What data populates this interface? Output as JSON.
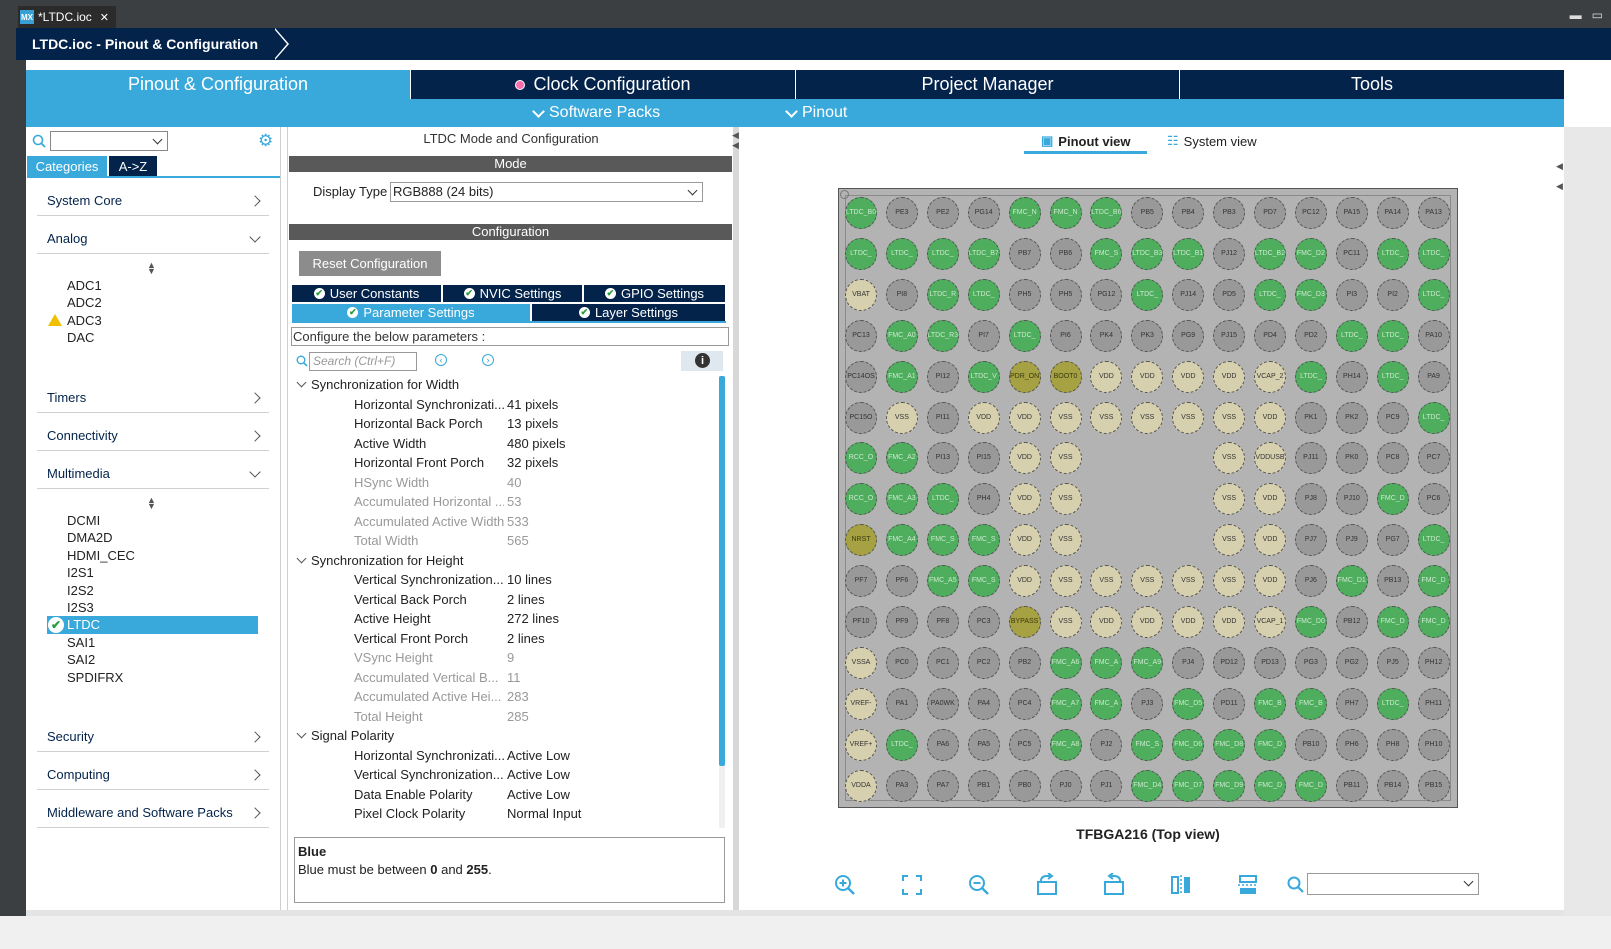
{
  "window": {
    "file_tab": "*LTDC.ioc",
    "close_glyph": "✕",
    "app_icon_text": "MX",
    "minimize_glyph": "▬",
    "maximize_glyph": "▭"
  },
  "breadcrumb": "LTDC.ioc - Pinout & Configuration",
  "main_tabs": [
    {
      "label": "Pinout & Configuration"
    },
    {
      "label": "Clock Configuration"
    },
    {
      "label": "Project Manager"
    },
    {
      "label": "Tools"
    }
  ],
  "sub_menu": {
    "software_packs": "Software Packs",
    "pinout": "Pinout"
  },
  "left": {
    "tab_categories": "Categories",
    "tab_az": "A->Z",
    "categories": [
      "System Core",
      "Analog",
      "Timers",
      "Connectivity",
      "Multimedia",
      "Security",
      "Computing",
      "Middleware and Software Packs"
    ],
    "analog_items": [
      "ADC1",
      "ADC2",
      "ADC3",
      "DAC"
    ],
    "multimedia_items": [
      "DCMI",
      "DMA2D",
      "HDMI_CEC",
      "I2S1",
      "I2S2",
      "I2S3",
      "LTDC",
      "SAI1",
      "SAI2",
      "SPDIFRX"
    ]
  },
  "middle": {
    "title": "LTDC Mode and Configuration",
    "mode_header": "Mode",
    "display_type_label": "Display Type",
    "display_type_value": "RGB888 (24 bits)",
    "config_header": "Configuration",
    "reset_button": "Reset Configuration",
    "tabs_row1": [
      "User Constants",
      "NVIC Settings",
      "GPIO Settings"
    ],
    "tabs_row2": [
      "Parameter Settings",
      "Layer Settings"
    ],
    "configure_text": "Configure the below parameters :",
    "search_placeholder": "Search (Ctrl+F)",
    "info_glyph": "i",
    "groups": [
      {
        "title": "Synchronization for Width",
        "params": [
          {
            "name": "Horizontal Synchronizati...",
            "value": "41 pixels",
            "enabled": true
          },
          {
            "name": "Horizontal Back Porch",
            "value": "13 pixels",
            "enabled": true
          },
          {
            "name": "Active Width",
            "value": "480 pixels",
            "enabled": true
          },
          {
            "name": "Horizontal Front Porch",
            "value": "32 pixels",
            "enabled": true
          },
          {
            "name": "HSync Width",
            "value": "40",
            "enabled": false
          },
          {
            "name": "Accumulated Horizontal ...",
            "value": "53",
            "enabled": false
          },
          {
            "name": "Accumulated Active Width",
            "value": "533",
            "enabled": false
          },
          {
            "name": "Total Width",
            "value": "565",
            "enabled": false
          }
        ]
      },
      {
        "title": "Synchronization for Height",
        "params": [
          {
            "name": "Vertical Synchronization...",
            "value": "10 lines",
            "enabled": true
          },
          {
            "name": "Vertical Back Porch",
            "value": "2 lines",
            "enabled": true
          },
          {
            "name": "Active Height",
            "value": "272 lines",
            "enabled": true
          },
          {
            "name": "Vertical Front Porch",
            "value": "2 lines",
            "enabled": true
          },
          {
            "name": "VSync Height",
            "value": "9",
            "enabled": false
          },
          {
            "name": "Accumulated Vertical B...",
            "value": "11",
            "enabled": false
          },
          {
            "name": "Accumulated Active Hei...",
            "value": "283",
            "enabled": false
          },
          {
            "name": "Total Height",
            "value": "285",
            "enabled": false
          }
        ]
      },
      {
        "title": "Signal Polarity",
        "params": [
          {
            "name": "Horizontal Synchronizati...",
            "value": "Active Low",
            "enabled": true
          },
          {
            "name": "Vertical Synchronization...",
            "value": "Active Low",
            "enabled": true
          },
          {
            "name": "Data Enable Polarity",
            "value": "Active Low",
            "enabled": true
          },
          {
            "name": "Pixel Clock Polarity",
            "value": "Normal Input",
            "enabled": true
          }
        ]
      }
    ],
    "description": {
      "title": "Blue",
      "text_pre": "Blue must be between ",
      "min": "0",
      "text_mid": " and ",
      "max": "255",
      "text_post": "."
    }
  },
  "right": {
    "pinout_view": "Pinout view",
    "system_view": "System view",
    "chip_label": "TFBGA216 (Top view)",
    "status_colors": {
      "assigned": "#4eae5e",
      "unassigned": "#999999",
      "power": "#d6d0ae",
      "special": "#a6a142",
      "accent": "#39a9dc",
      "nav": "#03234b"
    },
    "pin_rows": [
      [
        [
          "LTDC_B0",
          "a"
        ],
        [
          "PE3",
          "g"
        ],
        [
          "PE2",
          "g"
        ],
        [
          "PG14",
          "g"
        ],
        [
          "FMC_N",
          "a"
        ],
        [
          "FMC_N",
          "a"
        ],
        [
          "LTDC_B6",
          "a"
        ],
        [
          "PB5",
          "g"
        ],
        [
          "PB4",
          "g"
        ],
        [
          "PB3",
          "g"
        ],
        [
          "PD7",
          "g"
        ],
        [
          "PC12",
          "g"
        ],
        [
          "PA15",
          "g"
        ],
        [
          "PA14",
          "g"
        ],
        [
          "PA13",
          "g"
        ]
      ],
      [
        [
          "LTDC_",
          "a"
        ],
        [
          "LTDC_",
          "a"
        ],
        [
          "LTDC_",
          "a"
        ],
        [
          "LTDC_B7",
          "a"
        ],
        [
          "PB7",
          "g"
        ],
        [
          "PB6",
          "g"
        ],
        [
          "FMC_S",
          "a"
        ],
        [
          "LTDC_B3",
          "a"
        ],
        [
          "LTDC_B1",
          "a"
        ],
        [
          "PJ12",
          "g"
        ],
        [
          "LTDC_B2",
          "a"
        ],
        [
          "FMC_D2",
          "a"
        ],
        [
          "PC11",
          "g"
        ],
        [
          "LTDC_",
          "a"
        ],
        [
          "LTDC_",
          "a"
        ]
      ],
      [
        [
          "VBAT",
          "p"
        ],
        [
          "PI8",
          "g"
        ],
        [
          "LTDC_R",
          "a"
        ],
        [
          "LTDC_",
          "a"
        ],
        [
          "PH5",
          "g"
        ],
        [
          "PH5",
          "g"
        ],
        [
          "PG12",
          "g"
        ],
        [
          "LTDC_",
          "a"
        ],
        [
          "PJ14",
          "g"
        ],
        [
          "PD5",
          "g"
        ],
        [
          "LTDC_",
          "a"
        ],
        [
          "FMC_D3",
          "a"
        ],
        [
          "PI3",
          "g"
        ],
        [
          "PI2",
          "g"
        ],
        [
          "LTDC_",
          "a"
        ]
      ],
      [
        [
          "PC13",
          "g"
        ],
        [
          "FMC_A0",
          "a"
        ],
        [
          "LTDC_R3",
          "a"
        ],
        [
          "PI7",
          "g"
        ],
        [
          "LTDC_",
          "a"
        ],
        [
          "PI6",
          "g"
        ],
        [
          "PK4",
          "g"
        ],
        [
          "PK3",
          "g"
        ],
        [
          "PG9",
          "g"
        ],
        [
          "PJ15",
          "g"
        ],
        [
          "PD4",
          "g"
        ],
        [
          "PD2",
          "g"
        ],
        [
          "LTDC_",
          "a"
        ],
        [
          "LTDC_",
          "a"
        ],
        [
          "PA10",
          "g"
        ]
      ],
      [
        [
          "PC14OS",
          "g"
        ],
        [
          "FMC_A1",
          "a"
        ],
        [
          "PI12",
          "g"
        ],
        [
          "LTDC_V",
          "a"
        ],
        [
          "PDR_ON",
          "y"
        ],
        [
          "BOOT0",
          "y"
        ],
        [
          "VDD",
          "p"
        ],
        [
          "VDD",
          "p"
        ],
        [
          "VDD",
          "p"
        ],
        [
          "VDD",
          "p"
        ],
        [
          "VCAP_2",
          "p"
        ],
        [
          "LTDC_",
          "a"
        ],
        [
          "PH14",
          "g"
        ],
        [
          "LTDC_",
          "a"
        ],
        [
          "PA9",
          "g"
        ]
      ],
      [
        [
          "PC15O",
          "g"
        ],
        [
          "VSS",
          "p"
        ],
        [
          "PI11",
          "g"
        ],
        [
          "VDD",
          "p"
        ],
        [
          "VDD",
          "p"
        ],
        [
          "VSS",
          "p"
        ],
        [
          "VSS",
          "p"
        ],
        [
          "VSS",
          "p"
        ],
        [
          "VSS",
          "p"
        ],
        [
          "VSS",
          "p"
        ],
        [
          "VDD",
          "p"
        ],
        [
          "PK1",
          "g"
        ],
        [
          "PK2",
          "g"
        ],
        [
          "PC9",
          "g"
        ],
        [
          "LTDC_",
          "a"
        ]
      ],
      [
        [
          "RCC_O",
          "a"
        ],
        [
          "FMC_A2",
          "a"
        ],
        [
          "PI13",
          "g"
        ],
        [
          "PI15",
          "g"
        ],
        [
          "VDD",
          "p"
        ],
        [
          "VSS",
          "p"
        ],
        null,
        null,
        null,
        [
          "VSS",
          "p"
        ],
        [
          "VDDUSB",
          "p"
        ],
        [
          "PJ11",
          "g"
        ],
        [
          "PK0",
          "g"
        ],
        [
          "PC8",
          "g"
        ],
        [
          "PC7",
          "g"
        ]
      ],
      [
        [
          "RCC_O",
          "a"
        ],
        [
          "FMC_A3",
          "a"
        ],
        [
          "LTDC_",
          "a"
        ],
        [
          "PH4",
          "g"
        ],
        [
          "VDD",
          "p"
        ],
        [
          "VSS",
          "p"
        ],
        null,
        null,
        null,
        [
          "VSS",
          "p"
        ],
        [
          "VDD",
          "p"
        ],
        [
          "PJ8",
          "g"
        ],
        [
          "PJ10",
          "g"
        ],
        [
          "FMC_D",
          "a"
        ],
        [
          "PC6",
          "g"
        ]
      ],
      [
        [
          "NRST",
          "y"
        ],
        [
          "FMC_A4",
          "a"
        ],
        [
          "FMC_S",
          "a"
        ],
        [
          "FMC_S",
          "a"
        ],
        [
          "VDD",
          "p"
        ],
        [
          "VSS",
          "p"
        ],
        null,
        null,
        null,
        [
          "VSS",
          "p"
        ],
        [
          "VDD",
          "p"
        ],
        [
          "PJ7",
          "g"
        ],
        [
          "PJ9",
          "g"
        ],
        [
          "PG7",
          "g"
        ],
        [
          "LTDC_",
          "a"
        ]
      ],
      [
        [
          "PF7",
          "g"
        ],
        [
          "PF6",
          "g"
        ],
        [
          "FMC_A5",
          "a"
        ],
        [
          "FMC_S",
          "a"
        ],
        [
          "VDD",
          "p"
        ],
        [
          "VSS",
          "p"
        ],
        [
          "VSS",
          "p"
        ],
        [
          "VSS",
          "p"
        ],
        [
          "VSS",
          "p"
        ],
        [
          "VSS",
          "p"
        ],
        [
          "VDD",
          "p"
        ],
        [
          "PJ6",
          "g"
        ],
        [
          "FMC_D1",
          "a"
        ],
        [
          "PB13",
          "g"
        ],
        [
          "FMC_D",
          "a"
        ]
      ],
      [
        [
          "PF10",
          "g"
        ],
        [
          "PF9",
          "g"
        ],
        [
          "PF8",
          "g"
        ],
        [
          "PC3",
          "g"
        ],
        [
          "BYPASS",
          "y"
        ],
        [
          "VSS",
          "p"
        ],
        [
          "VDD",
          "p"
        ],
        [
          "VDD",
          "p"
        ],
        [
          "VDD",
          "p"
        ],
        [
          "VDD",
          "p"
        ],
        [
          "VCAP_1",
          "p"
        ],
        [
          "FMC_D0",
          "a"
        ],
        [
          "PB12",
          "g"
        ],
        [
          "FMC_D",
          "a"
        ],
        [
          "FMC_D",
          "a"
        ]
      ],
      [
        [
          "VSSA",
          "p"
        ],
        [
          "PC0",
          "g"
        ],
        [
          "PC1",
          "g"
        ],
        [
          "PC2",
          "g"
        ],
        [
          "PB2",
          "g"
        ],
        [
          "FMC_A6",
          "a"
        ],
        [
          "FMC_A",
          "a"
        ],
        [
          "FMC_A9",
          "a"
        ],
        [
          "PJ4",
          "g"
        ],
        [
          "PD12",
          "g"
        ],
        [
          "PD13",
          "g"
        ],
        [
          "PG3",
          "g"
        ],
        [
          "PG2",
          "g"
        ],
        [
          "PJ5",
          "g"
        ],
        [
          "PH12",
          "g"
        ]
      ],
      [
        [
          "VREF-",
          "p"
        ],
        [
          "PA1",
          "g"
        ],
        [
          "PA0WK",
          "g"
        ],
        [
          "PA4",
          "g"
        ],
        [
          "PC4",
          "g"
        ],
        [
          "FMC_A7",
          "a"
        ],
        [
          "FMC_A",
          "a"
        ],
        [
          "PJ3",
          "g"
        ],
        [
          "FMC_D5",
          "a"
        ],
        [
          "PD11",
          "g"
        ],
        [
          "FMC_B",
          "a"
        ],
        [
          "FMC_B",
          "a"
        ],
        [
          "PH7",
          "g"
        ],
        [
          "LTDC_",
          "a"
        ],
        [
          "PH11",
          "g"
        ]
      ],
      [
        [
          "VREF+",
          "p"
        ],
        [
          "LTDC_",
          "a"
        ],
        [
          "PA6",
          "g"
        ],
        [
          "PA5",
          "g"
        ],
        [
          "PC5",
          "g"
        ],
        [
          "FMC_A8",
          "a"
        ],
        [
          "PJ2",
          "g"
        ],
        [
          "FMC_S",
          "a"
        ],
        [
          "FMC_D6",
          "a"
        ],
        [
          "FMC_D8",
          "a"
        ],
        [
          "FMC_D",
          "a"
        ],
        [
          "PB10",
          "g"
        ],
        [
          "PH6",
          "g"
        ],
        [
          "PH8",
          "g"
        ],
        [
          "PH10",
          "g"
        ]
      ],
      [
        [
          "VDDA",
          "p"
        ],
        [
          "PA3",
          "g"
        ],
        [
          "PA7",
          "g"
        ],
        [
          "PB1",
          "g"
        ],
        [
          "PB0",
          "g"
        ],
        [
          "PJ0",
          "g"
        ],
        [
          "PJ1",
          "g"
        ],
        [
          "FMC_D4",
          "a"
        ],
        [
          "FMC_D7",
          "a"
        ],
        [
          "FMC_D9",
          "a"
        ],
        [
          "FMC_D",
          "a"
        ],
        [
          "FMC_D",
          "a"
        ],
        [
          "PB11",
          "g"
        ],
        [
          "PB14",
          "g"
        ],
        [
          "PB15",
          "g"
        ]
      ]
    ],
    "toolbar_icons": [
      "zoom-in-icon",
      "fit-icon",
      "zoom-out-icon",
      "rotate-right-icon",
      "rotate-left-icon",
      "flip-vertical-icon",
      "flip-horizontal-icon",
      "search-icon"
    ]
  }
}
